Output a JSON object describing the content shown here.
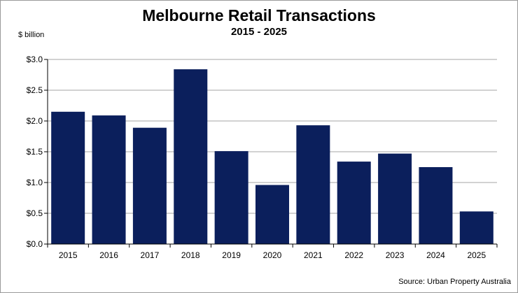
{
  "chart_data": {
    "type": "bar",
    "title": "Melbourne Retail Transactions",
    "subtitle": "2015 - 2025",
    "ylabel": "$ billion",
    "xlabel": "",
    "categories": [
      "2015",
      "2016",
      "2017",
      "2018",
      "2019",
      "2020",
      "2021",
      "2022",
      "2023",
      "2024",
      "2025"
    ],
    "values": [
      2.15,
      2.09,
      1.89,
      2.84,
      1.51,
      0.96,
      1.93,
      1.34,
      1.47,
      1.25,
      0.53
    ],
    "ylim": [
      0,
      3.0
    ],
    "yticks": [
      0,
      0.5,
      1.0,
      1.5,
      2.0,
      2.5,
      3.0
    ],
    "ytick_labels": [
      "$0.0",
      "$0.5",
      "$1.0",
      "$1.5",
      "$2.0",
      "$2.5",
      "$3.0"
    ],
    "grid": true,
    "legend": "none",
    "bar_color": "#0b1f5c",
    "grid_color": "#a6a6a6",
    "source": "Source: Urban Property Australia"
  }
}
